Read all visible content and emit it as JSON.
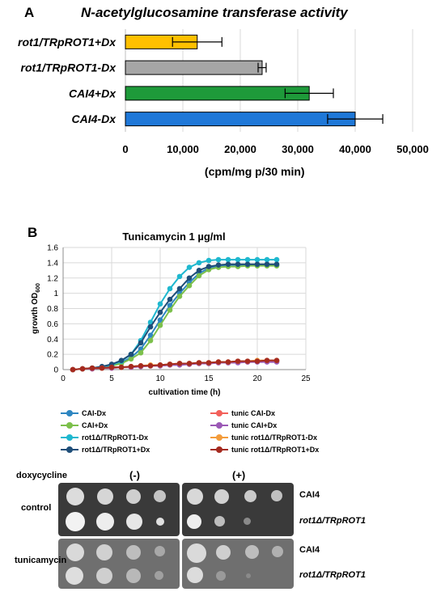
{
  "panel_a": {
    "letter": "A",
    "title_italic": "N",
    "title_rest": "-acetylglucosamine  transferase activity"
  },
  "panel_b": {
    "letter": "B"
  },
  "spot_assay": {
    "doxycycline_label": "doxycycline",
    "minus_label": "(-)",
    "plus_label": "(+)",
    "control_label": "control",
    "tunicamycin_label": "tunicamycin",
    "strain_cai4": "CAI4",
    "strain_rot1": "rot1Δ/TRpROT1",
    "strain_cai4_b": "CAI4",
    "strain_rot1_b": "rot1Δ/TRpROT1"
  },
  "chart_data": [
    {
      "type": "bar",
      "orientation": "horizontal",
      "title": "N-acetylglucosamine  transferase activity",
      "categories": [
        "rot1/TRpROT1+Dx",
        "rot1/TRpROT1-Dx",
        "CAI4+Dx",
        "CAI4-Dx"
      ],
      "values": [
        12500,
        23800,
        32000,
        40000
      ],
      "errors": [
        4300,
        700,
        4200,
        4800
      ],
      "colors": [
        "#ffc000",
        "#a6a6a6",
        "#1e9a3a",
        "#1f78d8"
      ],
      "xlabel": "(cpm/mg p/30 min)",
      "xlim": [
        0,
        50000
      ],
      "xticks": [
        0,
        10000,
        20000,
        30000,
        40000,
        50000
      ],
      "xtick_labels": [
        "0",
        "10,000",
        "20,000",
        "30,000",
        "40,000",
        "50,000"
      ],
      "grid": true
    },
    {
      "type": "line",
      "title": "Tunicamycin 1 µg/ml",
      "xlabel": "cultivation time (h)",
      "ylabel_main": "growth OD",
      "ylabel_sub": "600",
      "xlim": [
        0,
        25
      ],
      "ylim": [
        0,
        1.6
      ],
      "xticks": [
        0,
        5,
        10,
        15,
        20,
        25
      ],
      "yticks": [
        0,
        0.2,
        0.4,
        0.6,
        0.8,
        1.0,
        1.2,
        1.4,
        1.6
      ],
      "ytick_labels": [
        "0",
        "0.2",
        "0.4",
        "0.6",
        "0.8",
        "1",
        "1.2",
        "1.4",
        "1.6"
      ],
      "grid": true,
      "legend_position": "bottom",
      "x": [
        1,
        2,
        3,
        4,
        5,
        6,
        7,
        8,
        9,
        10,
        11,
        12,
        13,
        14,
        15,
        16,
        17,
        18,
        19,
        20,
        21,
        22
      ],
      "series": [
        {
          "name": "CAI-Dx",
          "color": "#2e86c1",
          "values": [
            0.0,
            0.01,
            0.02,
            0.03,
            0.05,
            0.09,
            0.16,
            0.27,
            0.45,
            0.65,
            0.84,
            1.0,
            1.14,
            1.26,
            1.33,
            1.36,
            1.37,
            1.37,
            1.37,
            1.37,
            1.37,
            1.37
          ]
        },
        {
          "name": "CAI+Dx",
          "color": "#7cc04b",
          "values": [
            0.0,
            0.01,
            0.02,
            0.03,
            0.05,
            0.08,
            0.14,
            0.22,
            0.38,
            0.58,
            0.78,
            0.96,
            1.1,
            1.23,
            1.31,
            1.34,
            1.35,
            1.35,
            1.36,
            1.36,
            1.36,
            1.36
          ]
        },
        {
          "name": "rot1Δ/TRpROT1-Dx",
          "color": "#1fb8cf",
          "values": [
            0.0,
            0.01,
            0.02,
            0.03,
            0.06,
            0.11,
            0.2,
            0.38,
            0.62,
            0.86,
            1.06,
            1.22,
            1.34,
            1.4,
            1.43,
            1.44,
            1.44,
            1.44,
            1.44,
            1.44,
            1.44,
            1.44
          ]
        },
        {
          "name": "rot1Δ/TRpROT1+Dx",
          "color": "#1f4e79",
          "values": [
            0.0,
            0.01,
            0.02,
            0.04,
            0.07,
            0.12,
            0.2,
            0.35,
            0.56,
            0.75,
            0.92,
            1.06,
            1.2,
            1.3,
            1.35,
            1.37,
            1.38,
            1.38,
            1.38,
            1.38,
            1.38,
            1.38
          ]
        },
        {
          "name": "tunic CAI-Dx",
          "color": "#f2605a",
          "values": [
            0.0,
            0.01,
            0.01,
            0.02,
            0.02,
            0.03,
            0.03,
            0.04,
            0.05,
            0.05,
            0.06,
            0.07,
            0.07,
            0.08,
            0.08,
            0.09,
            0.09,
            0.1,
            0.1,
            0.11,
            0.11,
            0.11
          ]
        },
        {
          "name": "tunic CAI+Dx",
          "color": "#9b59b6",
          "values": [
            0.0,
            0.01,
            0.01,
            0.02,
            0.02,
            0.03,
            0.03,
            0.04,
            0.05,
            0.05,
            0.06,
            0.06,
            0.07,
            0.08,
            0.08,
            0.09,
            0.09,
            0.09,
            0.1,
            0.1,
            0.1,
            0.1
          ]
        },
        {
          "name": "tunic rot1Δ/TRpROT1-Dx",
          "color": "#f39c3c",
          "values": [
            0.0,
            0.01,
            0.02,
            0.02,
            0.03,
            0.03,
            0.04,
            0.05,
            0.06,
            0.06,
            0.07,
            0.08,
            0.08,
            0.09,
            0.09,
            0.1,
            0.1,
            0.11,
            0.11,
            0.12,
            0.12,
            0.12
          ]
        },
        {
          "name": "tunic rot1Δ/TRpROT1+Dx",
          "color": "#a52a1f",
          "values": [
            0.0,
            0.01,
            0.02,
            0.02,
            0.03,
            0.03,
            0.04,
            0.05,
            0.05,
            0.06,
            0.07,
            0.08,
            0.08,
            0.09,
            0.09,
            0.1,
            0.1,
            0.11,
            0.11,
            0.11,
            0.12,
            0.12
          ]
        }
      ]
    }
  ]
}
